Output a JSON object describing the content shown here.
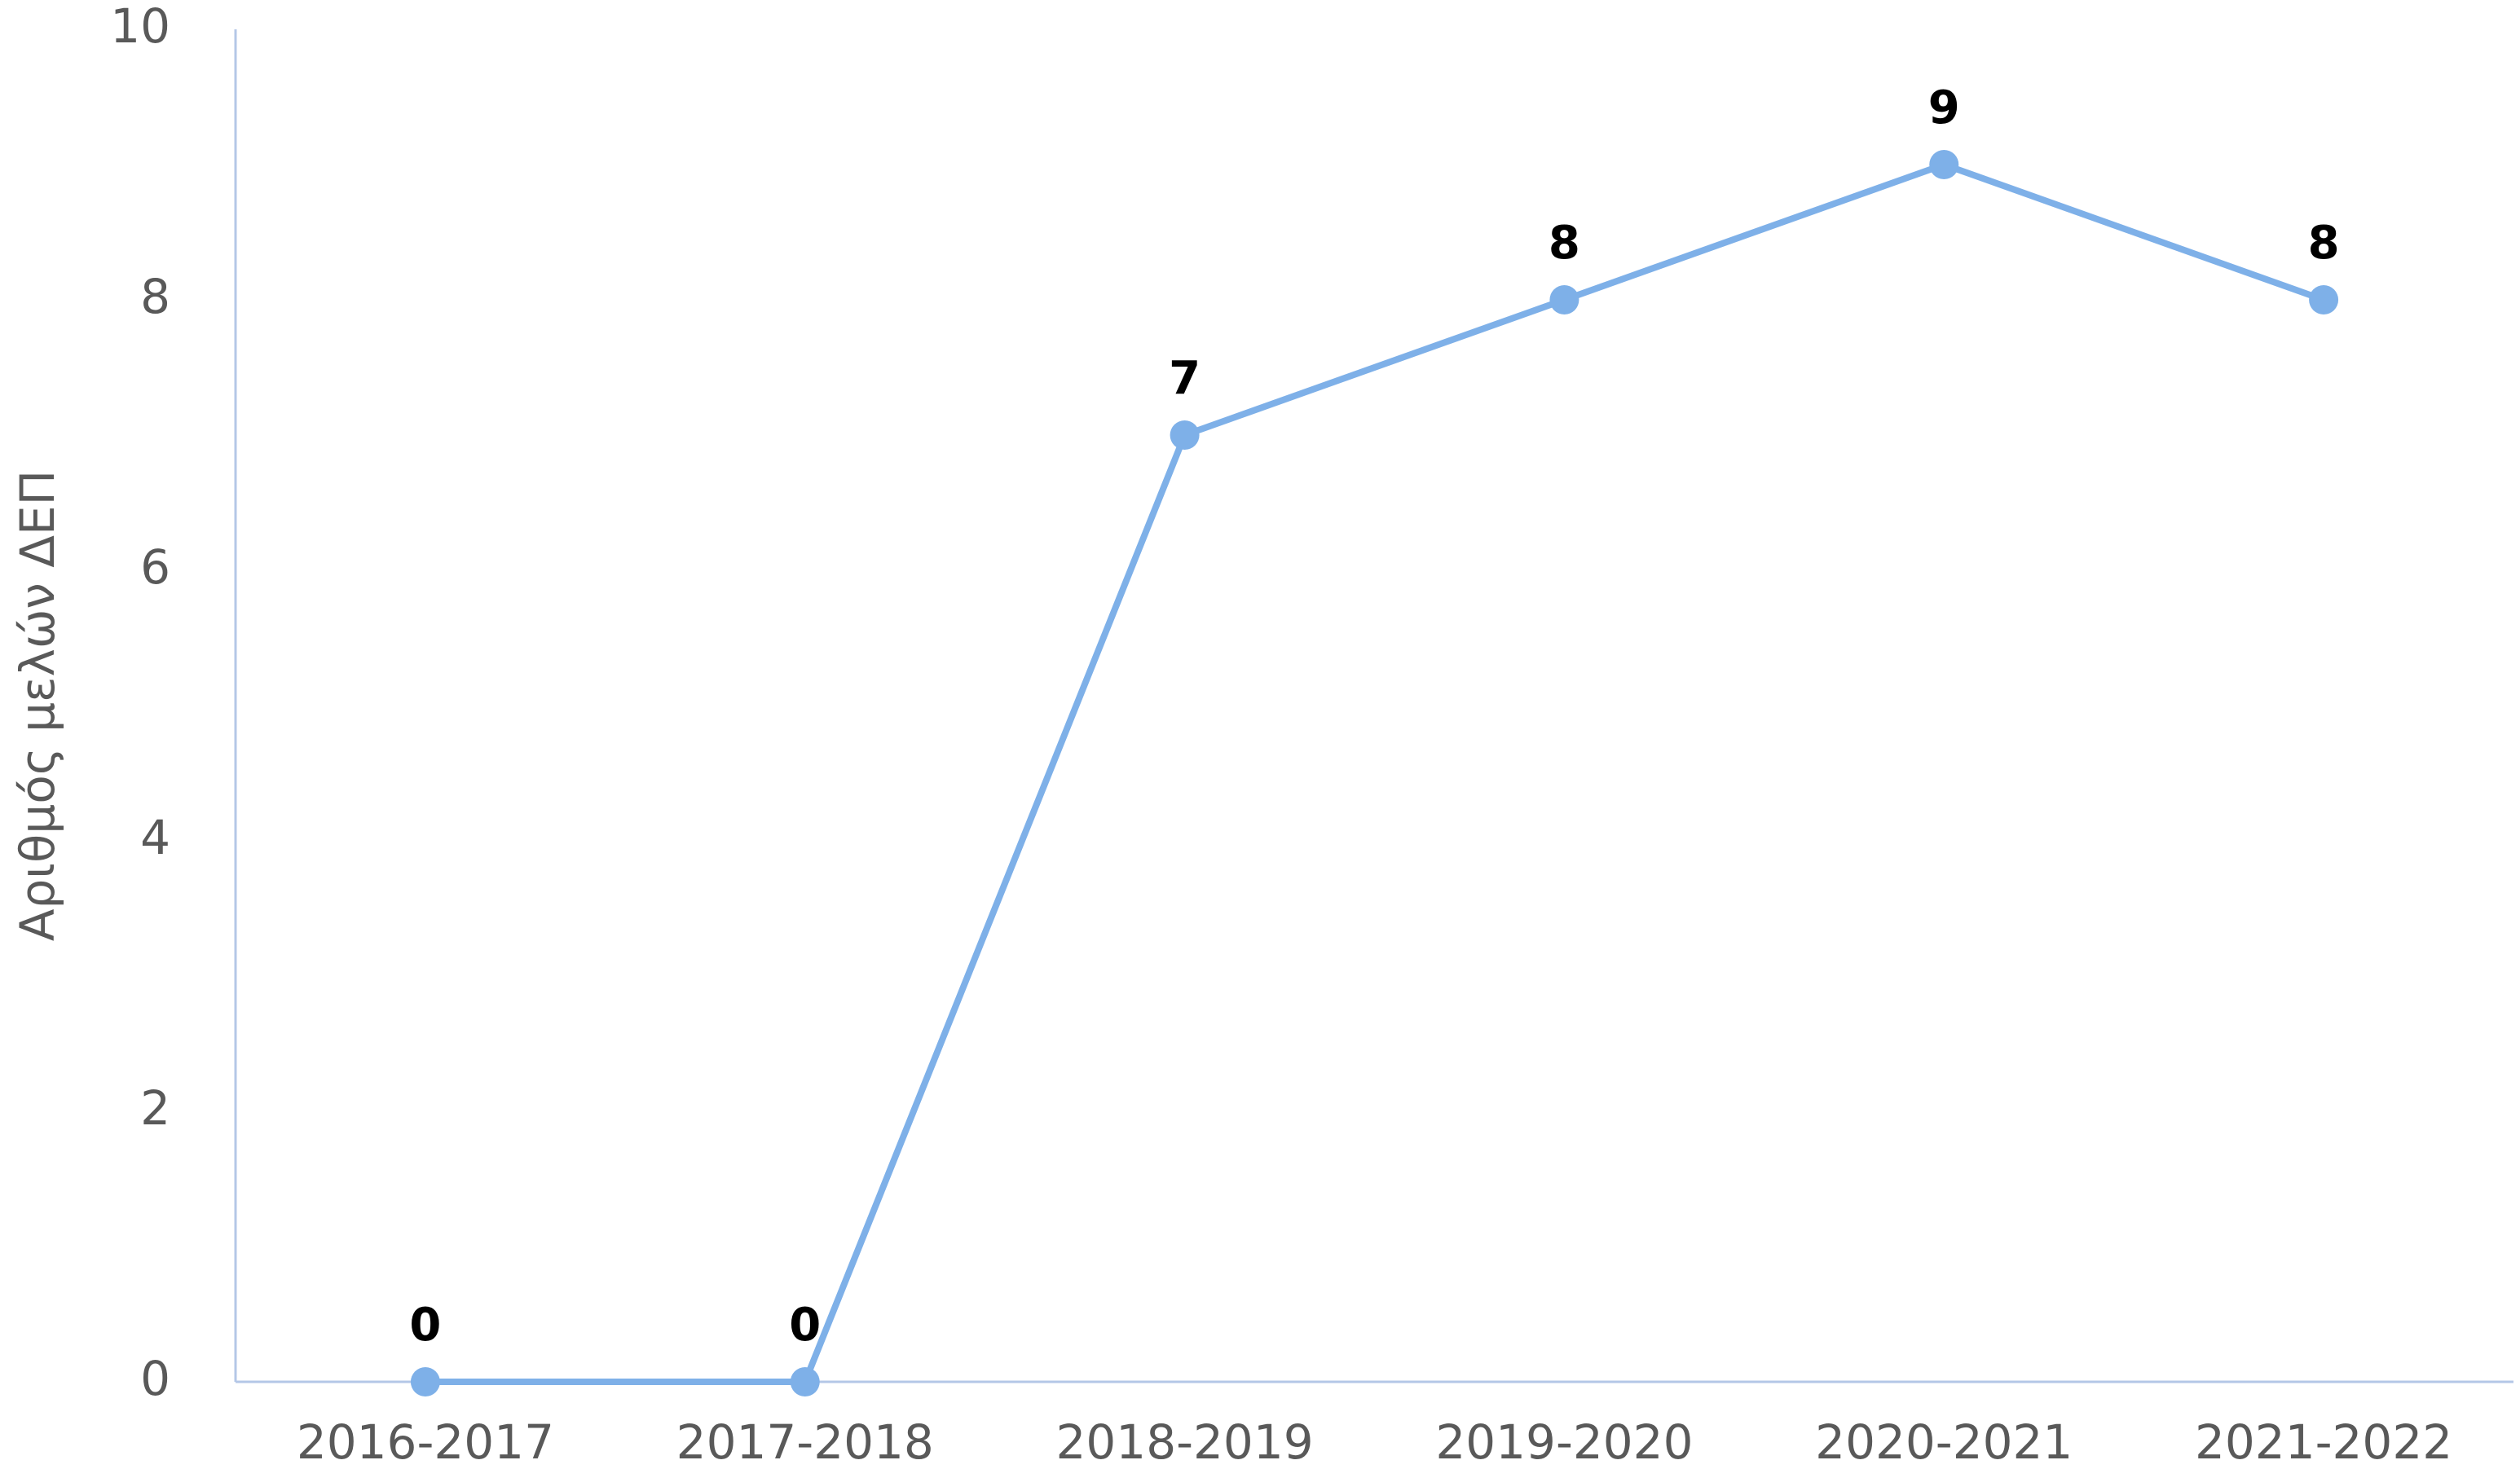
{
  "chart_data": {
    "type": "line",
    "y_label": "Αριθμός μελών ΔΕΠ",
    "categories": [
      "2016-2017",
      "2017-2018",
      "2018-2019",
      "2019-2020",
      "2020-2021",
      "2021-2022"
    ],
    "series": [
      {
        "name": "Αριθμός μελών ΔΕΠ",
        "color": "#7eb0e8",
        "values": [
          0,
          0,
          7,
          8,
          9,
          8
        ]
      }
    ],
    "ylim": [
      0,
      10
    ],
    "yticks": [
      0,
      2,
      4,
      6,
      8,
      10
    ],
    "grid": false,
    "data_labels": true
  }
}
